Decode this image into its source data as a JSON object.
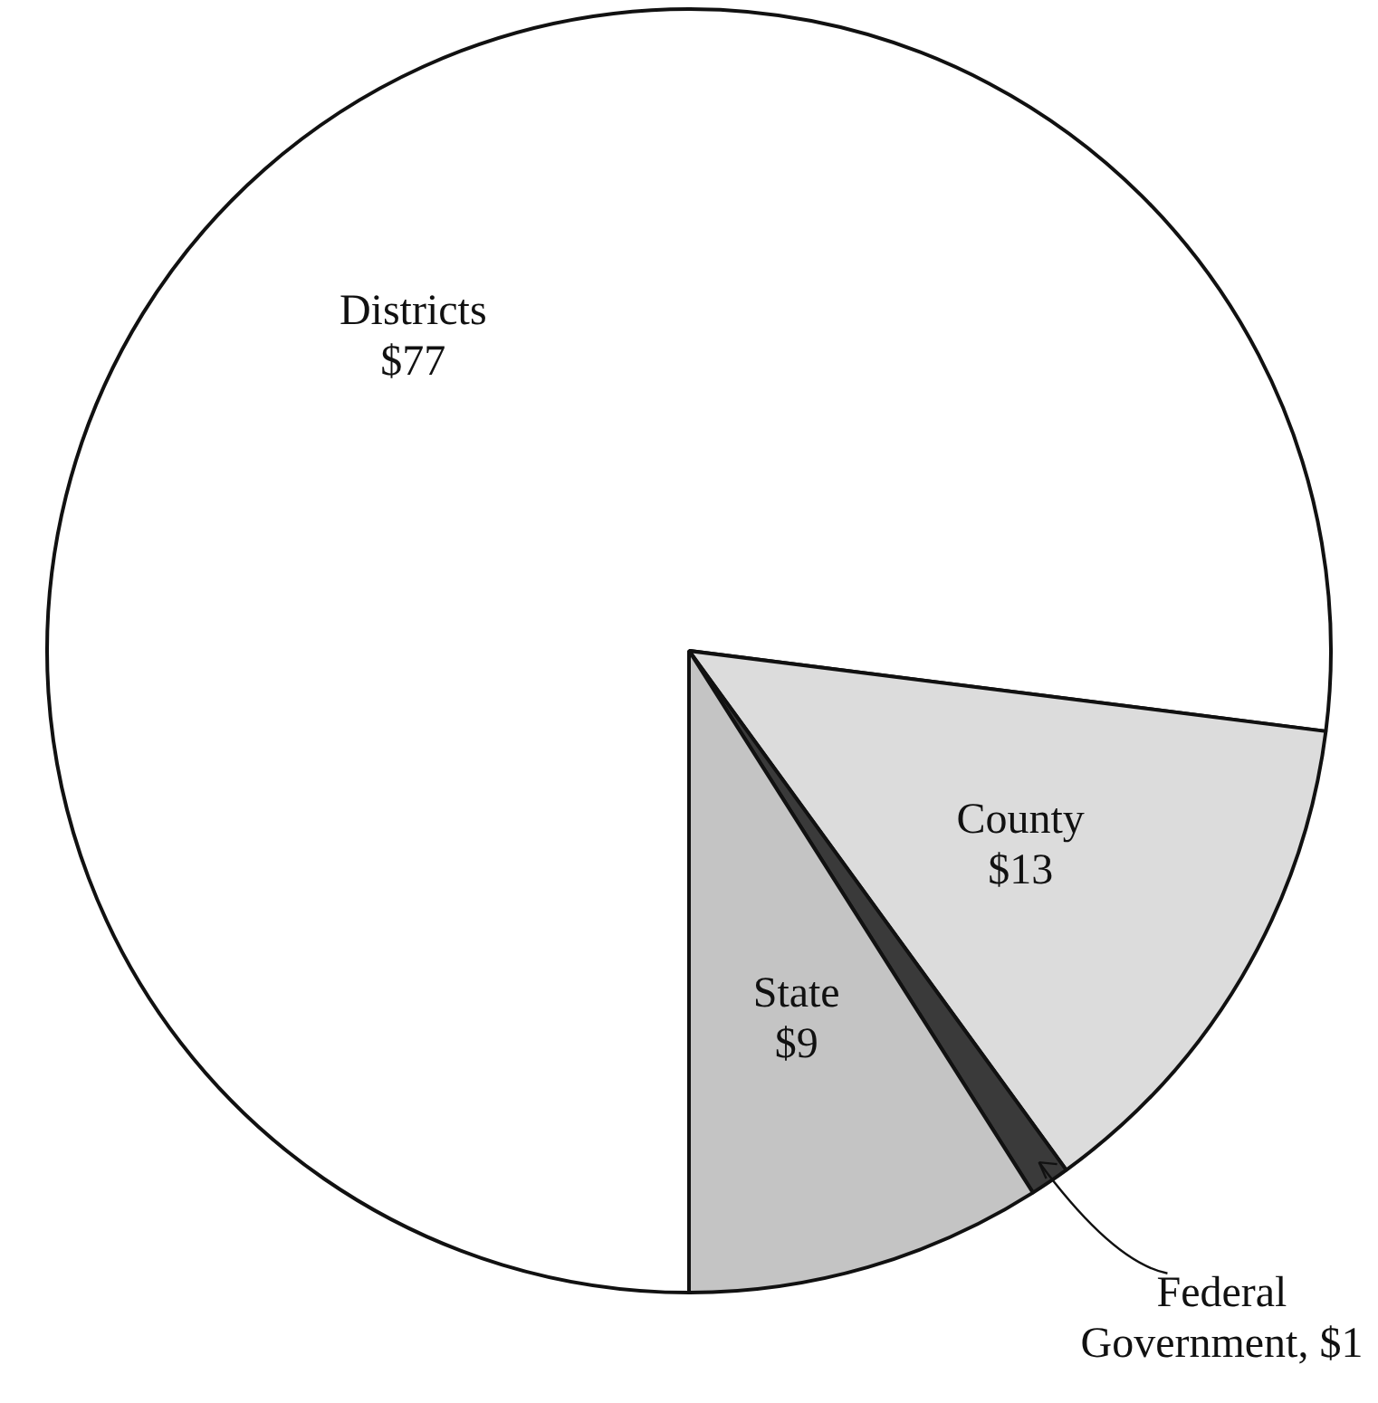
{
  "chart_data": {
    "type": "pie",
    "categories": [
      "Districts",
      "County",
      "Federal Government",
      "State"
    ],
    "values": [
      77,
      13,
      1,
      9
    ],
    "value_labels": [
      "$77",
      "$13",
      "$1",
      "$9"
    ],
    "colors": [
      "#ffffff",
      "#dcdcdc",
      "#3a3a3a",
      "#c4c4c4"
    ],
    "legend": false
  }
}
